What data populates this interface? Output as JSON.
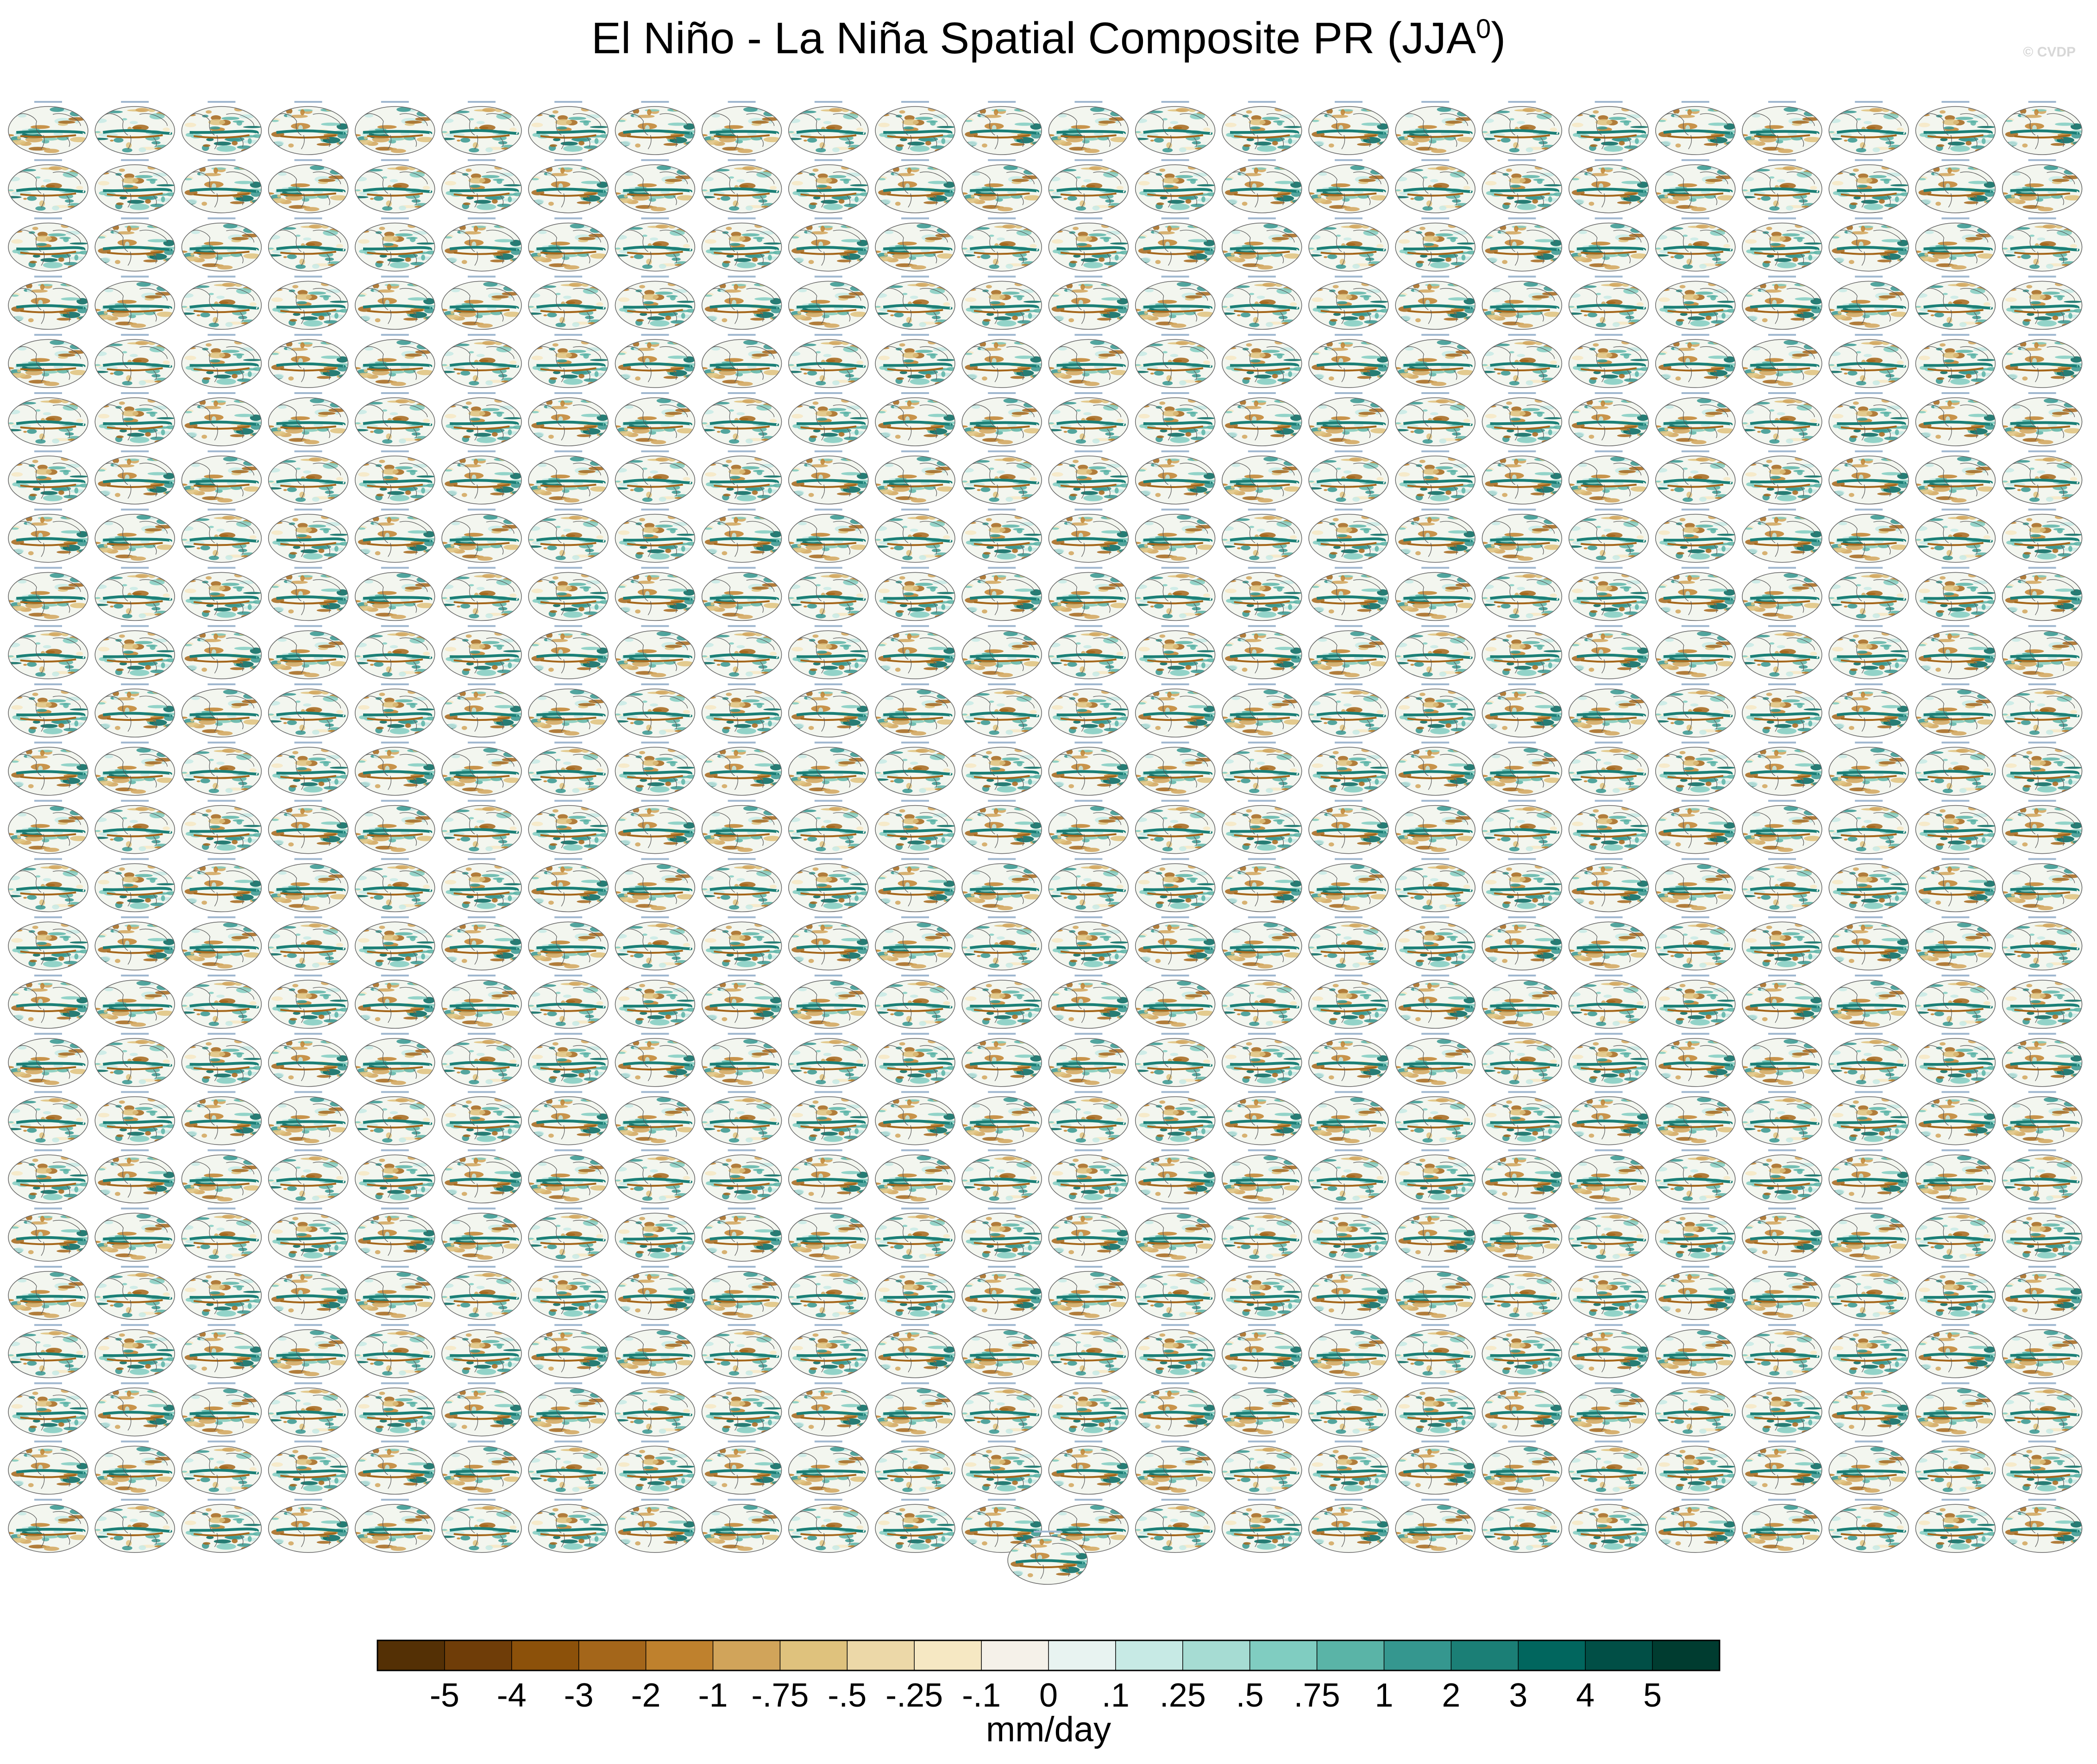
{
  "title": {
    "text": "El Niño - La Niña Spatial Composite PR (JJA",
    "superscript": "0",
    "closing": ")"
  },
  "watermark": "© CVDP",
  "chart_data": {
    "type": "heatmap",
    "description_grid": {
      "rows": 25,
      "cols": 24,
      "extra_panels": 1
    },
    "projection": "global map panels",
    "units": "mm/day",
    "colorbar": {
      "tick_labels": [
        "-5",
        "-4",
        "-3",
        "-2",
        "-1",
        "-.75",
        "-.5",
        "-.25",
        "-.1",
        "0",
        ".1",
        ".25",
        ".5",
        ".75",
        "1",
        "2",
        "3",
        "4",
        "5"
      ],
      "colors": [
        "#543005",
        "#6f3d08",
        "#8c510a",
        "#a4661a",
        "#bf812d",
        "#d1a45a",
        "#dfc27d",
        "#ecd8a8",
        "#f6e8c3",
        "#f5f1e9",
        "#e8f3f1",
        "#c7eae5",
        "#a6dcd3",
        "#80cdc1",
        "#5ab4a7",
        "#35978f",
        "#1b7f76",
        "#01665e",
        "#014f46",
        "#003c30"
      ]
    }
  }
}
